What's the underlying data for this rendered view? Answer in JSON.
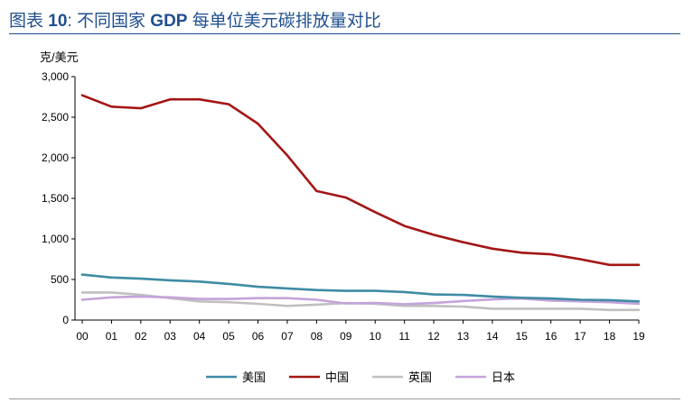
{
  "figure": {
    "label": "图表",
    "number": "10",
    "separator": ":",
    "title_pre": "不同国家",
    "title_gdp": "GDP",
    "title_post": "每单位美元碳排放量对比"
  },
  "chart_data": {
    "type": "line",
    "title": "",
    "ylabel": "克/美元",
    "xlabel": "",
    "ylim": [
      0,
      3000
    ],
    "yticks": [
      0,
      500,
      1000,
      1500,
      2000,
      2500,
      3000
    ],
    "ytick_labels": [
      "0",
      "500",
      "1,000",
      "1,500",
      "2,000",
      "2,500",
      "3,000"
    ],
    "categories": [
      "00",
      "01",
      "02",
      "03",
      "04",
      "05",
      "06",
      "07",
      "08",
      "09",
      "10",
      "11",
      "12",
      "13",
      "14",
      "15",
      "16",
      "17",
      "18",
      "19"
    ],
    "grid": false,
    "legend_position": "bottom",
    "series": [
      {
        "name": "美国",
        "color": "#3f8ca4",
        "values": [
          560,
          525,
          510,
          490,
          475,
          445,
          410,
          390,
          370,
          360,
          360,
          345,
          315,
          310,
          290,
          275,
          265,
          250,
          245,
          230
        ]
      },
      {
        "name": "中国",
        "color": "#a31515",
        "values": [
          2770,
          2630,
          2610,
          2720,
          2720,
          2660,
          2420,
          2030,
          1590,
          1510,
          1330,
          1160,
          1050,
          960,
          880,
          830,
          810,
          750,
          680,
          680
        ]
      },
      {
        "name": "英国",
        "color": "#c0c0c0",
        "values": [
          340,
          340,
          310,
          270,
          230,
          220,
          200,
          175,
          190,
          210,
          200,
          175,
          175,
          165,
          140,
          140,
          140,
          140,
          125,
          125
        ]
      },
      {
        "name": "日本",
        "color": "#c3a4da",
        "values": [
          250,
          280,
          290,
          280,
          260,
          260,
          270,
          270,
          250,
          205,
          210,
          195,
          210,
          235,
          255,
          265,
          240,
          230,
          220,
          200
        ]
      }
    ]
  }
}
